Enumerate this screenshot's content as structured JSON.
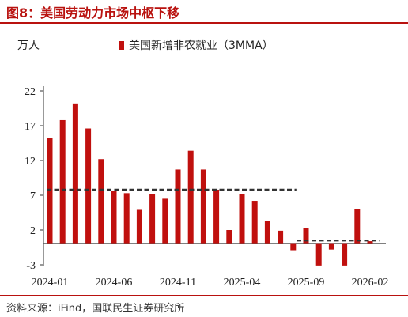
{
  "header": {
    "title": "图8：美国劳动力市场中枢下移"
  },
  "legend": {
    "unit": "万人",
    "series_name": "美国新增非农就业（3MMA）"
  },
  "footer": {
    "source": "资料来源：iFind，国联民生证券研究所"
  },
  "colors": {
    "bar": "#c0100e",
    "trend": "#333333",
    "accent": "#b9120f"
  },
  "chart_data": {
    "type": "bar",
    "title": "图8：美国劳动力市场中枢下移",
    "ylabel": "万人",
    "ylim": [
      -3,
      22
    ],
    "yticks": [
      -3,
      2,
      7,
      12,
      17,
      22
    ],
    "xtick_labels": [
      "2024-01",
      "2024-06",
      "2024-11",
      "2025-04",
      "2025-09",
      "2026-02"
    ],
    "categories": [
      "2024-01",
      "2024-02",
      "2024-03",
      "2024-04",
      "2024-05",
      "2024-06",
      "2024-07",
      "2024-08",
      "2024-09",
      "2024-10",
      "2024-11",
      "2024-12",
      "2025-01",
      "2025-02",
      "2025-03",
      "2025-04",
      "2025-05",
      "2025-06",
      "2025-07",
      "2025-08",
      "2025-09",
      "2025-10",
      "2025-11",
      "2025-12",
      "2026-01",
      "2026-02"
    ],
    "series": [
      {
        "name": "美国新增非农就业（3MMA）",
        "values": [
          15.2,
          17.8,
          20.2,
          16.6,
          12.2,
          7.6,
          7.3,
          4.9,
          7.2,
          6.5,
          10.7,
          13.4,
          10.7,
          7.8,
          2.0,
          7.2,
          6.2,
          3.3,
          1.9,
          -0.9,
          2.3,
          -3.1,
          -0.8,
          -3.1,
          5.0,
          0.4
        ]
      }
    ],
    "trend_lines": [
      {
        "from": "2024-01",
        "to": "2025-08",
        "value": 7.8
      },
      {
        "from": "2025-09",
        "to": "2026-02",
        "value": 0.5
      }
    ],
    "grid": false,
    "legend_position": "top"
  }
}
